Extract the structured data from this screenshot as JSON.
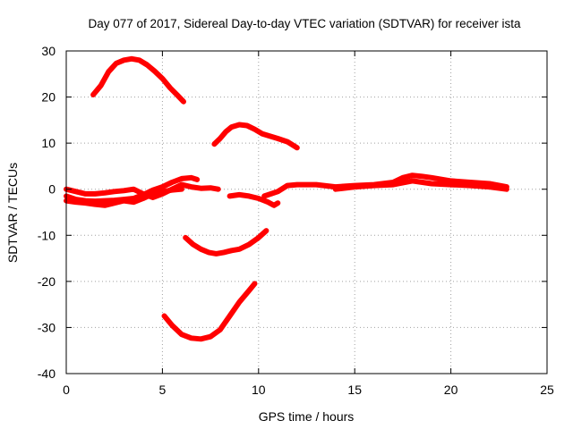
{
  "chart_data": {
    "type": "line",
    "title": "Day 077 of 2017, Sidereal Day-to-day VTEC variation (SDTVAR) for receiver ista",
    "xlabel": "GPS time / hours",
    "ylabel": "SDTVAR / TECUs",
    "xlim": [
      0,
      25
    ],
    "ylim": [
      -40,
      30
    ],
    "xticks": [
      0,
      5,
      10,
      15,
      20,
      25
    ],
    "yticks": [
      -40,
      -30,
      -20,
      -10,
      0,
      10,
      20,
      30
    ],
    "grid": true,
    "series_color": "#ff0000",
    "series": [
      {
        "name": "arc-positive-28",
        "x": [
          1.4,
          1.8,
          2.2,
          2.6,
          3.0,
          3.4,
          3.8,
          4.2,
          4.6,
          5.0,
          5.4,
          5.8,
          6.1
        ],
        "y": [
          20.5,
          22.5,
          25.5,
          27.3,
          28.0,
          28.3,
          28.0,
          27.0,
          25.6,
          24.0,
          22.0,
          20.3,
          19.0
        ]
      },
      {
        "name": "arc-positive-14",
        "x": [
          7.7,
          8.0,
          8.3,
          8.6,
          9.0,
          9.4,
          9.8,
          10.2,
          10.6,
          11.0,
          11.5,
          12.0
        ],
        "y": [
          9.8,
          11.0,
          12.5,
          13.5,
          14.0,
          13.8,
          13.0,
          12.0,
          11.5,
          11.0,
          10.3,
          9.0
        ]
      },
      {
        "name": "arc-near-zero-a",
        "x": [
          0.0,
          0.5,
          1.0,
          1.5,
          2.0,
          2.5,
          3.0,
          3.5,
          4.0,
          4.5,
          5.0,
          5.5,
          6.0,
          6.5,
          6.8
        ],
        "y": [
          -1.5,
          -2.2,
          -2.5,
          -2.6,
          -2.5,
          -2.4,
          -2.2,
          -2.0,
          -1.2,
          -0.2,
          0.5,
          1.5,
          2.3,
          2.5,
          2.1
        ]
      },
      {
        "name": "arc-near-zero-b",
        "x": [
          0.0,
          0.5,
          1.0,
          1.5,
          2.0,
          2.5,
          3.0,
          3.5,
          4.0,
          4.5,
          5.0,
          5.5,
          6.0,
          6.5,
          7.0,
          7.5,
          7.9
        ],
        "y": [
          0.0,
          -0.5,
          -1.0,
          -1.0,
          -0.8,
          -0.5,
          -0.3,
          0.0,
          -1.0,
          -1.8,
          -1.0,
          0.0,
          1.0,
          0.5,
          0.2,
          0.3,
          0.0
        ]
      },
      {
        "name": "arc-near-zero-c",
        "x": [
          0.0,
          0.5,
          1.0,
          1.5,
          2.0,
          2.5,
          3.0,
          3.5,
          4.0,
          4.5,
          5.0,
          5.5,
          6.0
        ],
        "y": [
          -2.5,
          -2.8,
          -3.0,
          -3.3,
          -3.5,
          -3.0,
          -2.5,
          -2.8,
          -2.0,
          -1.0,
          -0.5,
          -0.2,
          0.0
        ]
      },
      {
        "name": "arc-near-zero-d",
        "x": [
          8.5,
          9.0,
          9.5,
          10.0,
          10.5,
          10.8,
          11.0
        ],
        "y": [
          -1.5,
          -1.2,
          -1.5,
          -2.0,
          -2.8,
          -3.5,
          -3.0
        ]
      },
      {
        "name": "arc-near-zero-long",
        "x": [
          10.3,
          11.0,
          11.5,
          12.0,
          13.0,
          14.0,
          15.0,
          16.0,
          17.0,
          17.5,
          18.0,
          18.5,
          19.0,
          20.0,
          21.0,
          22.0,
          22.9
        ],
        "y": [
          -1.5,
          -0.5,
          0.8,
          1.0,
          1.0,
          0.5,
          0.8,
          1.0,
          1.5,
          2.5,
          3.0,
          2.8,
          2.5,
          1.8,
          1.5,
          1.2,
          0.5
        ]
      },
      {
        "name": "arc-near-zero-long-b",
        "x": [
          14.0,
          15.0,
          16.0,
          17.0,
          18.0,
          19.0,
          20.0,
          21.0,
          22.0,
          22.9
        ],
        "y": [
          0.0,
          0.5,
          0.8,
          1.0,
          1.8,
          1.2,
          1.0,
          0.8,
          0.5,
          0.0
        ]
      },
      {
        "name": "arc-negative-13",
        "x": [
          6.2,
          6.6,
          7.0,
          7.4,
          7.8,
          8.2,
          8.6,
          9.0,
          9.5,
          10.0,
          10.4
        ],
        "y": [
          -10.5,
          -12.0,
          -13.0,
          -13.7,
          -14.0,
          -13.7,
          -13.3,
          -13.0,
          -12.0,
          -10.5,
          -9.0
        ]
      },
      {
        "name": "arc-negative-32",
        "x": [
          5.1,
          5.5,
          6.0,
          6.5,
          7.0,
          7.5,
          8.0,
          8.5,
          9.0,
          9.5,
          9.8
        ],
        "y": [
          -27.5,
          -29.5,
          -31.5,
          -32.3,
          -32.5,
          -32.0,
          -30.5,
          -27.5,
          -24.5,
          -22.0,
          -20.5
        ]
      }
    ]
  }
}
